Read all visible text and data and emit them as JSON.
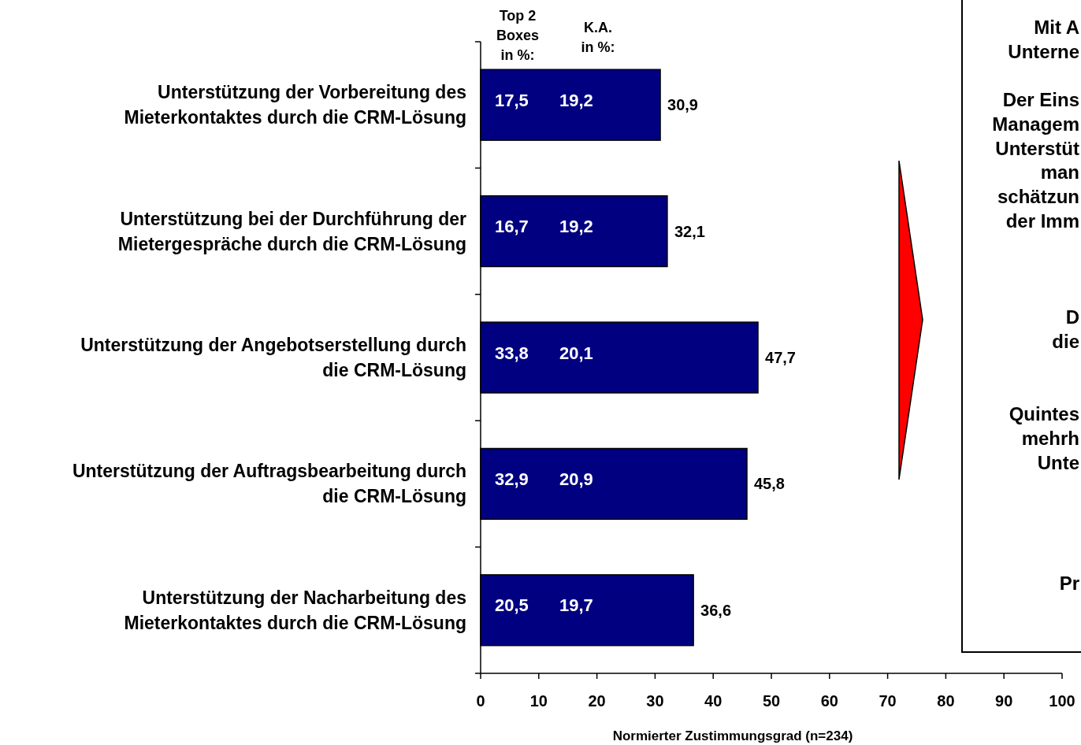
{
  "chart_data": {
    "type": "bar",
    "orientation": "horizontal",
    "xlabel": "Normierter Zustimmungsgrad (n=234)",
    "categories": [
      "Unterstützung der Vorbereitung des\nMieterkontaktes durch die CRM-Lösung",
      "Unterstützung bei der Durchführung der\nMietergespräche durch die CRM-Lösung",
      "Unterstützung der Angebotserstellung durch\ndie CRM-Lösung",
      "Unterstützung der Auftragsbearbeitung durch\ndie CRM-Lösung",
      "Unterstützung der Nacharbeitung des\nMieterkontaktes durch die CRM-Lösung"
    ],
    "values": [
      30.9,
      32.1,
      47.7,
      45.8,
      36.6
    ],
    "value_labels": [
      "30,9",
      "32,1",
      "47,7",
      "45,8",
      "36,6"
    ],
    "color": "#000080",
    "xlim": [
      0,
      100
    ],
    "xticks": [
      0,
      10,
      20,
      30,
      40,
      50,
      60,
      70,
      80,
      90,
      100
    ],
    "grid": false,
    "annotations": [
      "Top 2\nBoxes\nin %:",
      "K.A.\nin %:",
      "Mit A\nUnterne\n\nDer Eins\nManagem\nUnterstüt\nman\nschätzun\nder Imm\n\n\n\nD\ndie\n\n\nQuintes\nmehrh\nUnte\n\n\n\n\nPr",
      "17,5",
      "19,2",
      "16,7",
      "19,2",
      "33,8",
      "20,1",
      "32,9",
      "20,9",
      "20,5",
      "19,7"
    ]
  }
}
